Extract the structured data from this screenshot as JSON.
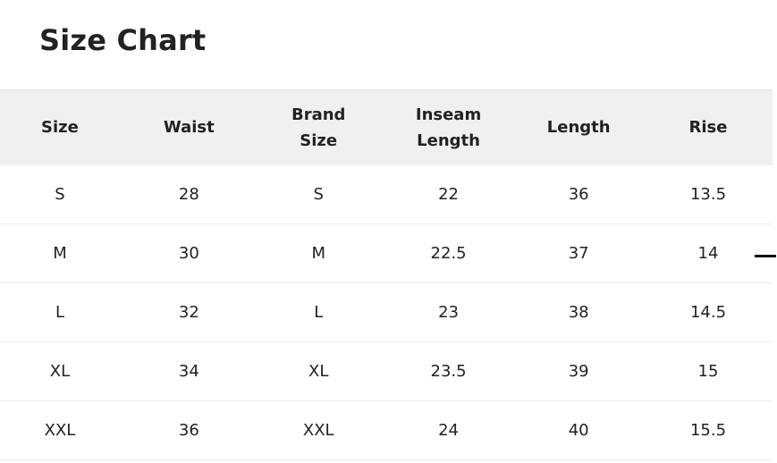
{
  "title": "Size Chart",
  "headers": [
    "Size",
    "Waist",
    "Brand\nSize",
    "Inseam\nLength",
    "Length",
    "Rise"
  ],
  "header_lines": [
    [
      "Size"
    ],
    [
      "Waist"
    ],
    [
      "Brand",
      "Size"
    ],
    [
      "Inseam",
      "Length"
    ],
    [
      "Length"
    ],
    [
      "Rise"
    ]
  ],
  "rows": [
    [
      "S",
      "28",
      "S",
      "22",
      "36",
      "13.5"
    ],
    [
      "M",
      "30",
      "M",
      "22.5",
      "37",
      "14"
    ],
    [
      "L",
      "32",
      "L",
      "23",
      "38",
      "14.5"
    ],
    [
      "XL",
      "34",
      "XL",
      "23.5",
      "39",
      "15"
    ],
    [
      "XXL",
      "36",
      "XXL",
      "24",
      "40",
      "15.5"
    ]
  ],
  "colors": {
    "header_bg": "#f0f0f0",
    "text": "#222222"
  }
}
